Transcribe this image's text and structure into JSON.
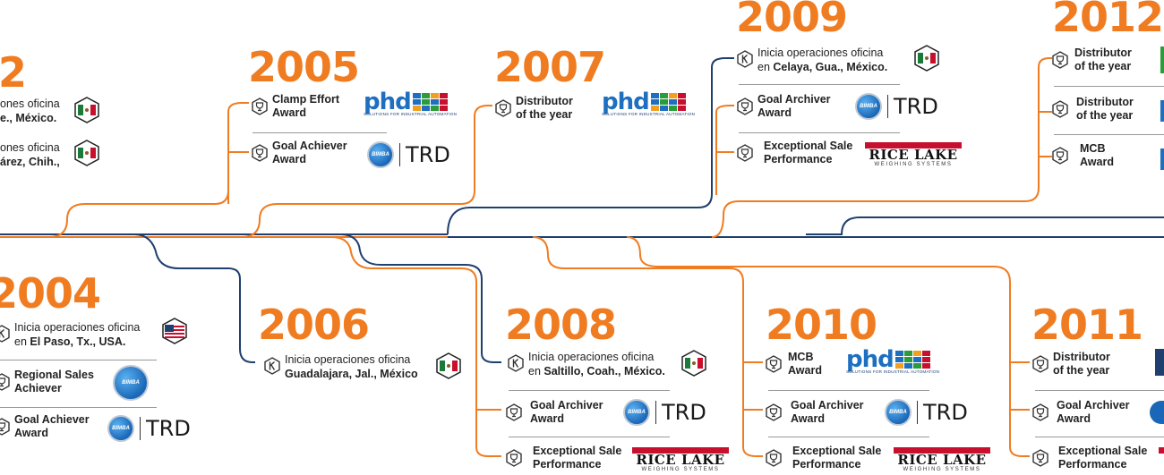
{
  "years": [
    "2",
    "2005",
    "2007",
    "2009",
    "2012",
    "2004",
    "2006",
    "2008",
    "2010",
    "2011"
  ],
  "entries": {
    "y2002_a": {
      "line1": "ones oficina",
      "line2": "e., México."
    },
    "y2002_b": {
      "line1": "ones oficina",
      "line2": "árez, Chih.,"
    },
    "y2005_a": {
      "line1": "Clamp Effort",
      "line2": "Award"
    },
    "y2005_b": {
      "line1": "Goal Achiever",
      "line2": "Award"
    },
    "y2007_a": {
      "line1": "Distributor",
      "line2": "of the year"
    },
    "y2009_a": {
      "line1": "Inicia operaciones oficina",
      "line2_pre": "en ",
      "line2_bold": "Celaya, Gua., México."
    },
    "y2009_b": {
      "line1": "Goal Archiver",
      "line2": "Award"
    },
    "y2009_c": {
      "line1": "Exceptional Sale",
      "line2": "Performance"
    },
    "y2012_a": {
      "line1": "Distributor",
      "line2": "of the year"
    },
    "y2012_b": {
      "line1": "Distributor",
      "line2": "of the year"
    },
    "y2012_c": {
      "line1": "MCB",
      "line2": "Award"
    },
    "y2004_a": {
      "line1": "Inicia operaciones oficina",
      "line2_pre": "en ",
      "line2_bold": "El Paso, Tx., USA."
    },
    "y2004_b": {
      "line1": "Regional Sales",
      "line2": "Achiever"
    },
    "y2004_c": {
      "line1": "Goal Achiever",
      "line2": "Award"
    },
    "y2006_a": {
      "line1": "Inicia operaciones oficina",
      "line2_bold": "Guadalajara, Jal., México"
    },
    "y2008_a": {
      "line1": "Inicia operaciones oficina",
      "line2_pre": "en ",
      "line2_bold": "Saltillo, Coah., México."
    },
    "y2008_b": {
      "line1": "Goal Archiver",
      "line2": "Award"
    },
    "y2008_c": {
      "line1": "Exceptional Sale",
      "line2": "Performance"
    },
    "y2010_a": {
      "line1": "MCB",
      "line2": "Award"
    },
    "y2010_b": {
      "line1": "Goal Archiver",
      "line2": "Award"
    },
    "y2010_c": {
      "line1": "Exceptional Sale",
      "line2": "Performance"
    },
    "y2011_a": {
      "line1": "Distributor",
      "line2": "of the year"
    },
    "y2011_b": {
      "line1": "Goal Archiver",
      "line2": "Award"
    },
    "y2011_c": {
      "line1": "Exceptional Sale",
      "line2": "Performance"
    }
  },
  "logos": {
    "phd_word": "phd",
    "phd_tagline": "SOLUTIONS FOR INDUSTRIAL AUTOMATION",
    "trd_word": "TRD",
    "bimba_word": "BIMBA",
    "rice_word": "RICE LAKE",
    "rice_sub": "WEIGHING SYSTEMS"
  },
  "colors": {
    "orange": "#f07c22",
    "navy": "#1f3f6e",
    "award_icon": "#333333",
    "phd_blue": "#1e6fc0",
    "rice_red": "#c8102e"
  },
  "icons": {
    "award": "trophy-hex-icon",
    "office": "k-hex-icon",
    "flag_mx": "mexico-flag-icon",
    "flag_us": "usa-flag-icon"
  }
}
